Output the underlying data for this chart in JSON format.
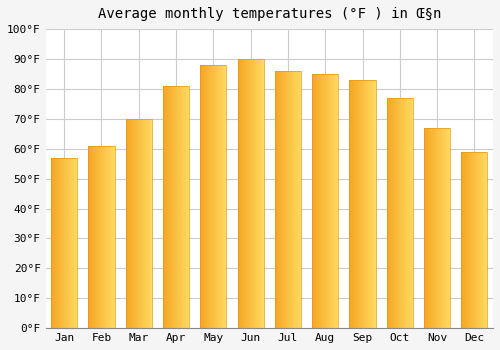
{
  "title": "Average monthly temperatures (°F ) in Œ§n",
  "months": [
    "Jan",
    "Feb",
    "Mar",
    "Apr",
    "May",
    "Jun",
    "Jul",
    "Aug",
    "Sep",
    "Oct",
    "Nov",
    "Dec"
  ],
  "values": [
    57,
    61,
    70,
    81,
    88,
    90,
    86,
    85,
    83,
    77,
    67,
    59
  ],
  "bar_color_main": "#F5A623",
  "bar_color_highlight": "#FFD966",
  "bar_color_edge": "#E8960A",
  "ylim": [
    0,
    100
  ],
  "yticks": [
    0,
    10,
    20,
    30,
    40,
    50,
    60,
    70,
    80,
    90,
    100
  ],
  "background_color": "#f5f5f5",
  "plot_bg_color": "#ffffff",
  "grid_color": "#cccccc",
  "title_fontsize": 10,
  "tick_fontsize": 8
}
